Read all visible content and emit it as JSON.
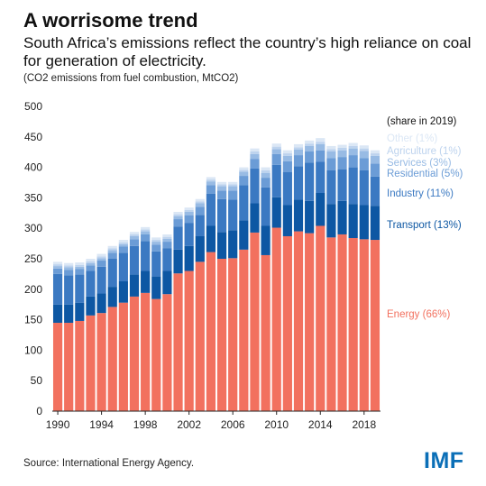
{
  "header": {
    "title": "A worrisome trend",
    "subtitle": "South Africa’s emissions reflect the country’s high reliance on coal for generation of electricity.",
    "note": "(CO2 emissions from fuel combustion, MtCO2)"
  },
  "footer": {
    "source": "Source: International Energy Agency.",
    "logo": "IMF"
  },
  "chart_data": {
    "type": "bar",
    "stacked": true,
    "title": "A worrisome trend",
    "ylim": [
      0,
      500
    ],
    "yticks": [
      0,
      50,
      100,
      150,
      200,
      250,
      300,
      350,
      400,
      450,
      500
    ],
    "xtick_labels": [
      "1990",
      "1994",
      "1998",
      "2002",
      "2006",
      "2010",
      "2014",
      "2018"
    ],
    "grid": false,
    "legend_header": "(share in 2019)",
    "categories": [
      "1990",
      "1991",
      "1992",
      "1993",
      "1994",
      "1995",
      "1996",
      "1997",
      "1998",
      "1999",
      "2000",
      "2001",
      "2002",
      "2003",
      "2004",
      "2005",
      "2006",
      "2007",
      "2008",
      "2009",
      "2010",
      "2011",
      "2012",
      "2013",
      "2014",
      "2015",
      "2016",
      "2017",
      "2018",
      "2019"
    ],
    "series": [
      {
        "name": "Energy",
        "share_label": "Energy (66%)",
        "color": "#f2715f",
        "values": [
          145,
          145,
          148,
          157,
          161,
          171,
          178,
          188,
          194,
          184,
          192,
          226,
          230,
          245,
          261,
          250,
          251,
          265,
          293,
          256,
          301,
          287,
          295,
          292,
          304,
          285,
          290,
          284,
          282,
          281
        ]
      },
      {
        "name": "Transport",
        "share_label": "Transport (13%)",
        "color": "#0d57a3",
        "values": [
          30,
          30,
          30,
          31,
          32,
          33,
          35,
          36,
          36,
          37,
          38,
          39,
          41,
          42,
          43,
          44,
          46,
          48,
          48,
          48,
          50,
          51,
          52,
          53,
          54,
          55,
          55,
          56,
          56,
          56
        ]
      },
      {
        "name": "Industry",
        "share_label": "Industry (11%)",
        "color": "#3b79c2",
        "values": [
          50,
          48,
          46,
          42,
          44,
          46,
          47,
          47,
          49,
          41,
          37,
          38,
          38,
          35,
          53,
          54,
          50,
          58,
          57,
          63,
          53,
          54,
          55,
          63,
          51,
          55,
          52,
          60,
          57,
          48
        ]
      },
      {
        "name": "Residential",
        "share_label": "Residential (5%)",
        "color": "#6b9cd6",
        "values": [
          9,
          9,
          9,
          9,
          10,
          10,
          10,
          11,
          11,
          11,
          11,
          12,
          12,
          13,
          14,
          14,
          15,
          15,
          16,
          16,
          18,
          18,
          18,
          18,
          19,
          20,
          20,
          20,
          20,
          21
        ]
      },
      {
        "name": "Services",
        "share_label": "Services (3%)",
        "color": "#98bbe4",
        "values": [
          4,
          4,
          4,
          4,
          4,
          4,
          4,
          5,
          5,
          5,
          5,
          5,
          6,
          6,
          6,
          7,
          7,
          7,
          8,
          8,
          8,
          9,
          9,
          9,
          10,
          11,
          11,
          11,
          12,
          13
        ]
      },
      {
        "name": "Agriculture",
        "share_label": "Agriculture (1%)",
        "color": "#bdd3ee",
        "values": [
          3,
          3,
          3,
          3,
          3,
          3,
          3,
          3,
          3,
          3,
          3,
          3,
          3,
          3,
          3,
          3,
          3,
          3,
          4,
          4,
          4,
          4,
          4,
          4,
          4,
          4,
          4,
          4,
          4,
          4
        ]
      },
      {
        "name": "Other",
        "share_label": "Other (1%)",
        "color": "#dbe7f5",
        "values": [
          4,
          4,
          4,
          4,
          4,
          4,
          4,
          4,
          4,
          4,
          4,
          4,
          4,
          4,
          4,
          4,
          4,
          4,
          5,
          5,
          5,
          5,
          5,
          5,
          6,
          5,
          5,
          5,
          5,
          5
        ]
      }
    ]
  }
}
